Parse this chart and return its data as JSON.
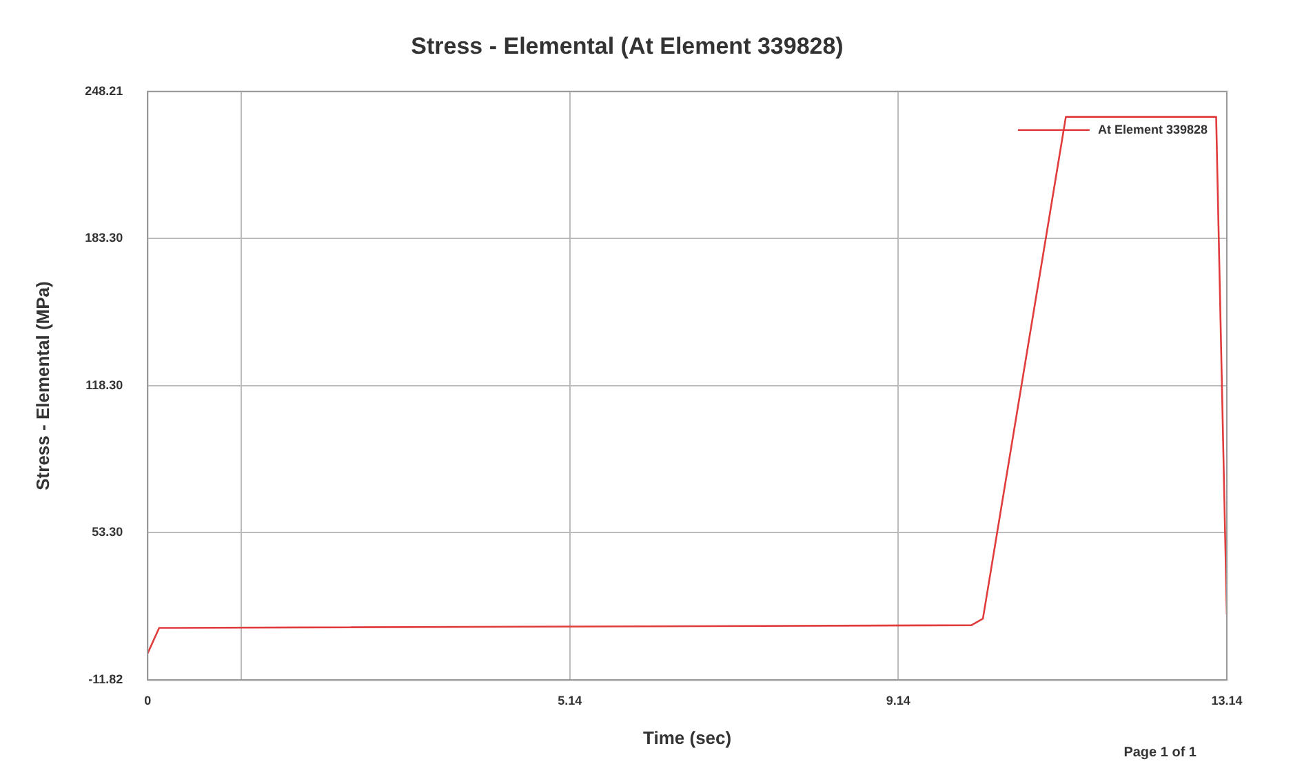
{
  "chart_data": {
    "type": "line",
    "title": "Stress - Elemental (At Element 339828)",
    "xlabel": "Time (sec)",
    "ylabel": "Stress - Elemental (MPa)",
    "x": [
      0,
      0.14,
      10.03,
      10.17,
      11.18,
      13.01,
      13.14
    ],
    "series": [
      {
        "name": "At Element 339828",
        "color": "#e03c3c",
        "values": [
          0,
          11.2,
          12.4,
          15.3,
          237,
          237,
          17.1
        ]
      }
    ],
    "xlim": [
      0,
      13.14
    ],
    "xticks": [
      0,
      {
        "value": 1.14,
        "label": null
      },
      5.14,
      9.14,
      13.14
    ],
    "ylim": [
      -11.82,
      248.21
    ],
    "yticks": [
      -11.82,
      {
        "value": 53.3,
        "label": "53.30"
      },
      {
        "value": 118.3,
        "label": "118.30"
      },
      {
        "value": 183.3,
        "label": "183.30"
      },
      248.21
    ],
    "grid": true,
    "legend": "top right",
    "marker": "none",
    "line_style": "solid",
    "annotations": [
      "Page 1 of 1"
    ]
  }
}
